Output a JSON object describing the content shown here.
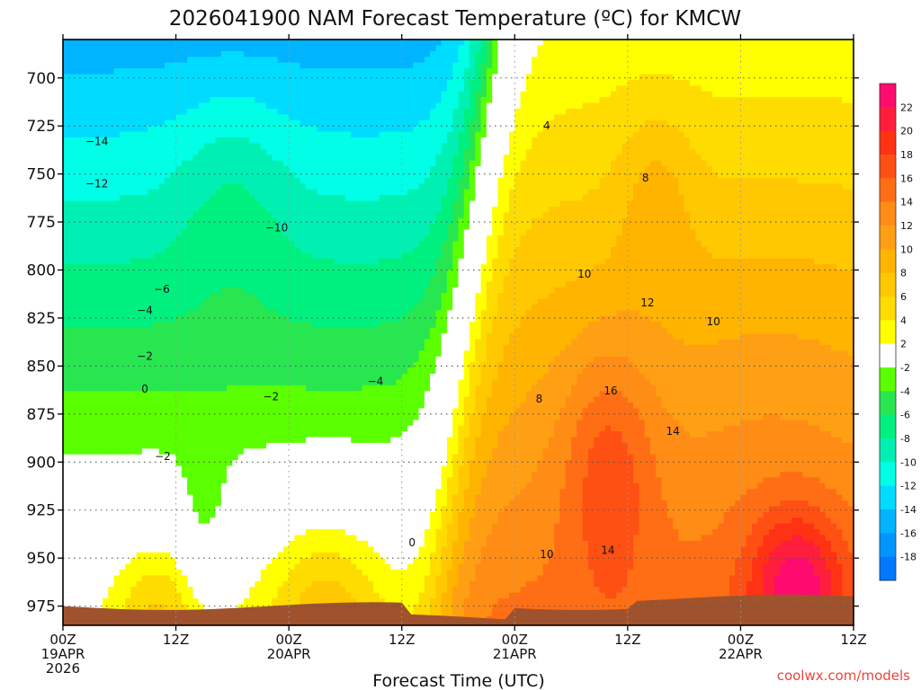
{
  "chart_data": {
    "type": "heatmap",
    "subtype": "time-height filled contour",
    "title": "2026041900 NAM Forecast Temperature (ºC) for KMCW",
    "xlabel": "Forecast Time (UTC)",
    "ylabel": "",
    "credit": "coolwx.com/models",
    "x_range_hours": [
      0,
      84
    ],
    "y_range_hpa": [
      985,
      680
    ],
    "x_ticks": [
      {
        "hour": 0,
        "line1": "00Z",
        "line2": "19APR",
        "line3": "2026"
      },
      {
        "hour": 12,
        "line1": "12Z",
        "line2": "",
        "line3": ""
      },
      {
        "hour": 24,
        "line1": "00Z",
        "line2": "20APR",
        "line3": ""
      },
      {
        "hour": 36,
        "line1": "12Z",
        "line2": "",
        "line3": ""
      },
      {
        "hour": 48,
        "line1": "00Z",
        "line2": "21APR",
        "line3": ""
      },
      {
        "hour": 60,
        "line1": "12Z",
        "line2": "",
        "line3": ""
      },
      {
        "hour": 72,
        "line1": "00Z",
        "line2": "22APR",
        "line3": ""
      },
      {
        "hour": 84,
        "line1": "12Z",
        "line2": "",
        "line3": ""
      }
    ],
    "y_ticks": [
      700,
      725,
      750,
      775,
      800,
      825,
      850,
      875,
      900,
      925,
      950,
      975
    ],
    "colorbar": {
      "levels": [
        22,
        20,
        18,
        16,
        14,
        12,
        10,
        8,
        6,
        4,
        2,
        -2,
        -4,
        -6,
        -8,
        -10,
        -12,
        -14,
        -16,
        -18
      ],
      "colors": [
        "#ff0a6e",
        "#ff1e3c",
        "#ff3214",
        "#ff5014",
        "#ff6e14",
        "#ff8c14",
        "#ffa014",
        "#ffb400",
        "#ffc800",
        "#ffdc00",
        "#ffff00",
        "#ffffff",
        "#5aff00",
        "#28e650",
        "#00f080",
        "#00f0b4",
        "#00ffe6",
        "#00dcff",
        "#00b4ff",
        "#0096ff",
        "#0078ff"
      ]
    },
    "contour_labels": [
      {
        "text": "−14",
        "t": 3.6,
        "p": 733
      },
      {
        "text": "−12",
        "t": 3.6,
        "p": 755
      },
      {
        "text": "−10",
        "t": 22.7,
        "p": 778
      },
      {
        "text": "−6",
        "t": 10.5,
        "p": 810
      },
      {
        "text": "−4",
        "t": 8.7,
        "p": 821
      },
      {
        "text": "−2",
        "t": 8.7,
        "p": 845
      },
      {
        "text": "0",
        "t": 8.7,
        "p": 862
      },
      {
        "text": "−2",
        "t": 10.6,
        "p": 897
      },
      {
        "text": "−2",
        "t": 22.1,
        "p": 866
      },
      {
        "text": "−4",
        "t": 33.2,
        "p": 858
      },
      {
        "text": "0",
        "t": 37.1,
        "p": 942
      },
      {
        "text": "4",
        "t": 51.4,
        "p": 725
      },
      {
        "text": "8",
        "t": 61.9,
        "p": 752
      },
      {
        "text": "10",
        "t": 55.4,
        "p": 802
      },
      {
        "text": "12",
        "t": 62.1,
        "p": 817
      },
      {
        "text": "10",
        "t": 69.1,
        "p": 827
      },
      {
        "text": "8",
        "t": 50.6,
        "p": 867
      },
      {
        "text": "16",
        "t": 58.2,
        "p": 863
      },
      {
        "text": "14",
        "t": 64.8,
        "p": 884
      },
      {
        "text": "10",
        "t": 51.4,
        "p": 948
      },
      {
        "text": "14",
        "t": 57.9,
        "p": 946
      }
    ],
    "terrain_color": "#a0522d",
    "surface_pressure_note": "brown underground region near 975–985 hPa"
  }
}
